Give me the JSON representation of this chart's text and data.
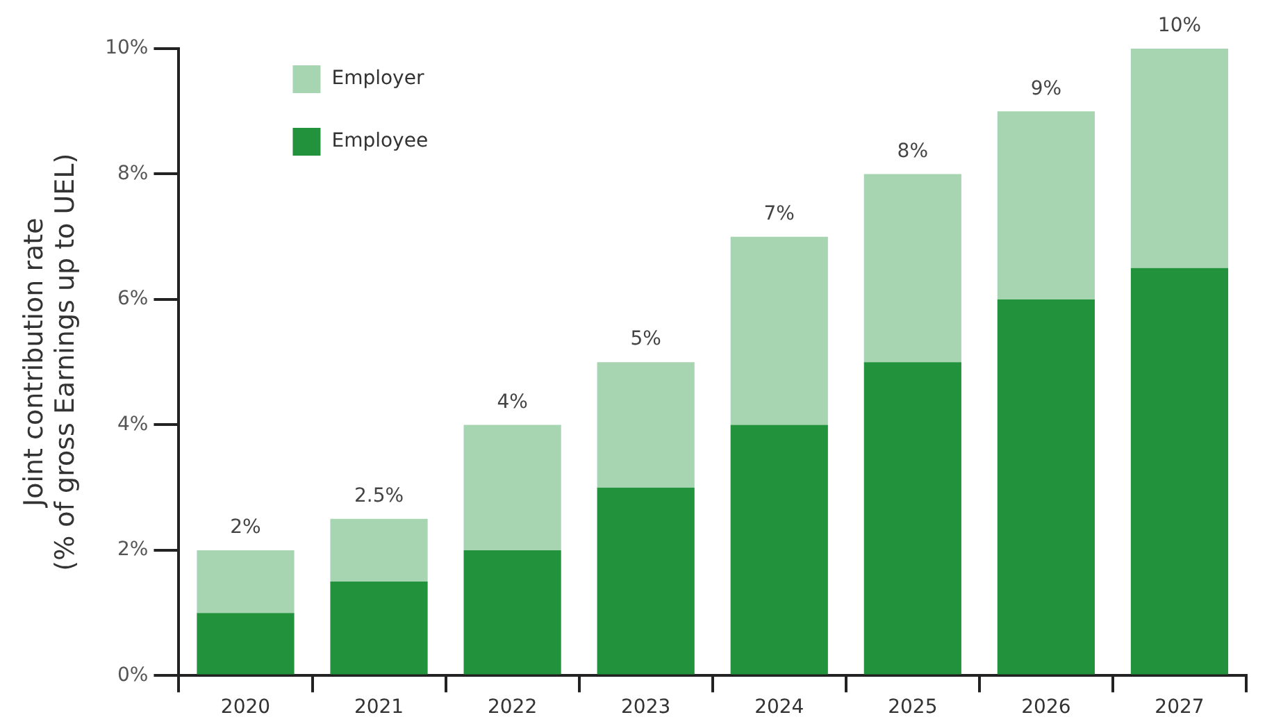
{
  "chart_data": {
    "type": "bar",
    "stacked": true,
    "ylabel": "Joint contribution rate\n(% of gross Earnings up to UEL)",
    "categories": [
      "2020",
      "2021",
      "2022",
      "2023",
      "2024",
      "2025",
      "2026",
      "2027"
    ],
    "series": [
      {
        "name": "Employee",
        "color": "#23923d",
        "values": [
          1,
          1.5,
          2,
          3,
          4,
          5,
          6,
          6.5
        ]
      },
      {
        "name": "Employer",
        "color": "#a8d5b1",
        "values": [
          1,
          1,
          2,
          2,
          3,
          3,
          3,
          3.5
        ]
      }
    ],
    "totals": [
      "2%",
      "2.5%",
      "4%",
      "5%",
      "7%",
      "8%",
      "9%",
      "10%"
    ],
    "ylim": [
      0,
      10
    ],
    "yticks": [
      {
        "value": 0,
        "label": "0%"
      },
      {
        "value": 2,
        "label": "2%"
      },
      {
        "value": 4,
        "label": "4%"
      },
      {
        "value": 6,
        "label": "6%"
      },
      {
        "value": 8,
        "label": "8%"
      },
      {
        "value": 10,
        "label": "10%"
      }
    ],
    "grid": false,
    "legend": "top left"
  }
}
